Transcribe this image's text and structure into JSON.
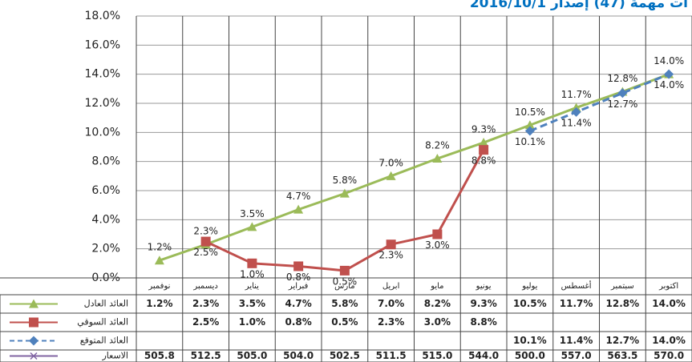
{
  "chart_data": {
    "type": "line",
    "title": "ات مهمة (47) إصدار 2016/10/1",
    "categories": [
      "نوفمبر",
      "ديسمبر",
      "يناير",
      "فبراير",
      "مارس",
      "ابريل",
      "مايو",
      "يونيو",
      "يوليو",
      "أغسطس",
      "سبتمبر",
      "اكتوبر"
    ],
    "ylim": [
      0,
      18
    ],
    "yticks": [
      {
        "value": 0,
        "label": "0.0%"
      },
      {
        "value": 2,
        "label": "2.0%"
      },
      {
        "value": 4,
        "label": "4.0%"
      },
      {
        "value": 6,
        "label": "6.0%"
      },
      {
        "value": 8,
        "label": "8.0%"
      },
      {
        "value": 10,
        "label": "10.0%"
      },
      {
        "value": 12,
        "label": "12.0%"
      },
      {
        "value": 14,
        "label": "14.0%"
      },
      {
        "value": 16,
        "label": "16.0%"
      },
      {
        "value": 18,
        "label": "18.0%"
      }
    ],
    "grid": true,
    "series": [
      {
        "name": "العائد العادل",
        "color": "#9bbb59",
        "marker": "triangle",
        "values": [
          1.2,
          2.3,
          3.5,
          4.7,
          5.8,
          7.0,
          8.2,
          9.3,
          10.5,
          11.7,
          12.8,
          14.0
        ],
        "value_labels": [
          "1.2%",
          "2.3%",
          "3.5%",
          "4.7%",
          "5.8%",
          "7.0%",
          "8.2%",
          "9.3%",
          "10.5%",
          "11.7%",
          "12.8%",
          "14.0%"
        ]
      },
      {
        "name": "العائد السوقي",
        "color": "#c0504d",
        "marker": "square",
        "values": [
          null,
          2.5,
          1.0,
          0.8,
          0.5,
          2.3,
          3.0,
          8.8,
          null,
          null,
          null,
          null
        ],
        "value_labels": [
          null,
          "2.5%",
          "1.0%",
          "0.8%",
          "0.5%",
          "2.3%",
          "3.0%",
          "8.8%",
          null,
          null,
          null,
          null
        ]
      },
      {
        "name": "العائد المتوقع",
        "color": "#4f81bd",
        "marker": "diamond",
        "dashed": true,
        "values": [
          null,
          null,
          null,
          null,
          null,
          null,
          null,
          null,
          10.1,
          11.4,
          12.7,
          14.0
        ],
        "value_labels": [
          null,
          null,
          null,
          null,
          null,
          null,
          null,
          null,
          "10.1%",
          "11.4%",
          "12.7%",
          "14.0%"
        ]
      },
      {
        "name": "الاسعار",
        "color": "#8064a2",
        "marker": "x",
        "table_only": true,
        "values": [
          505.8,
          512.5,
          505.0,
          504.0,
          502.5,
          511.5,
          515.0,
          544.0,
          500.0,
          557.0,
          563.5,
          570.0
        ],
        "value_labels": [
          "505.8",
          "512.5",
          "505.0",
          "504.0",
          "502.5",
          "511.5",
          "515.0",
          "544.0",
          "500.0",
          "557.0",
          "563.5",
          "570.0"
        ]
      }
    ]
  }
}
